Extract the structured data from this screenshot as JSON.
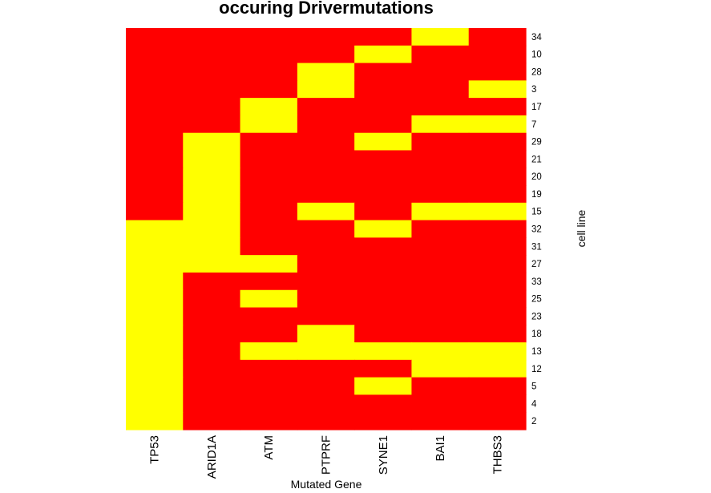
{
  "chart_data": {
    "type": "heatmap",
    "title": "occuring Drivermutations",
    "xlabel": "Mutated Gene",
    "ylabel": "cell line",
    "columns": [
      "TP53",
      "ARID1A",
      "ATM",
      "PTPRF",
      "SYNE1",
      "BAI1",
      "THBS3"
    ],
    "rows": [
      "34",
      "10",
      "28",
      "3",
      "17",
      "7",
      "29",
      "21",
      "20",
      "19",
      "15",
      "32",
      "31",
      "27",
      "33",
      "25",
      "23",
      "18",
      "13",
      "12",
      "5",
      "4",
      "2"
    ],
    "values": [
      [
        0,
        0,
        0,
        0,
        0,
        1,
        0
      ],
      [
        0,
        0,
        0,
        0,
        1,
        0,
        0
      ],
      [
        0,
        0,
        0,
        1,
        0,
        0,
        0
      ],
      [
        0,
        0,
        0,
        1,
        0,
        0,
        1
      ],
      [
        0,
        0,
        1,
        0,
        0,
        0,
        0
      ],
      [
        0,
        0,
        1,
        0,
        0,
        1,
        1
      ],
      [
        0,
        1,
        0,
        0,
        1,
        0,
        0
      ],
      [
        0,
        1,
        0,
        0,
        0,
        0,
        0
      ],
      [
        0,
        1,
        0,
        0,
        0,
        0,
        0
      ],
      [
        0,
        1,
        0,
        0,
        0,
        0,
        0
      ],
      [
        0,
        1,
        0,
        1,
        0,
        1,
        1
      ],
      [
        1,
        1,
        0,
        0,
        1,
        0,
        0
      ],
      [
        1,
        1,
        0,
        0,
        0,
        0,
        0
      ],
      [
        1,
        1,
        1,
        0,
        0,
        0,
        0
      ],
      [
        1,
        0,
        0,
        0,
        0,
        0,
        0
      ],
      [
        1,
        0,
        1,
        0,
        0,
        0,
        0
      ],
      [
        1,
        0,
        0,
        0,
        0,
        0,
        0
      ],
      [
        1,
        0,
        0,
        1,
        0,
        0,
        0
      ],
      [
        1,
        0,
        1,
        1,
        1,
        1,
        1
      ],
      [
        1,
        0,
        0,
        0,
        0,
        1,
        1
      ],
      [
        1,
        0,
        0,
        0,
        1,
        0,
        0
      ],
      [
        1,
        0,
        0,
        0,
        0,
        0,
        0
      ],
      [
        1,
        0,
        0,
        0,
        0,
        0,
        0
      ]
    ],
    "value_colors": {
      "0": "#ff0000",
      "1": "#ffff00"
    },
    "legend": "none"
  }
}
